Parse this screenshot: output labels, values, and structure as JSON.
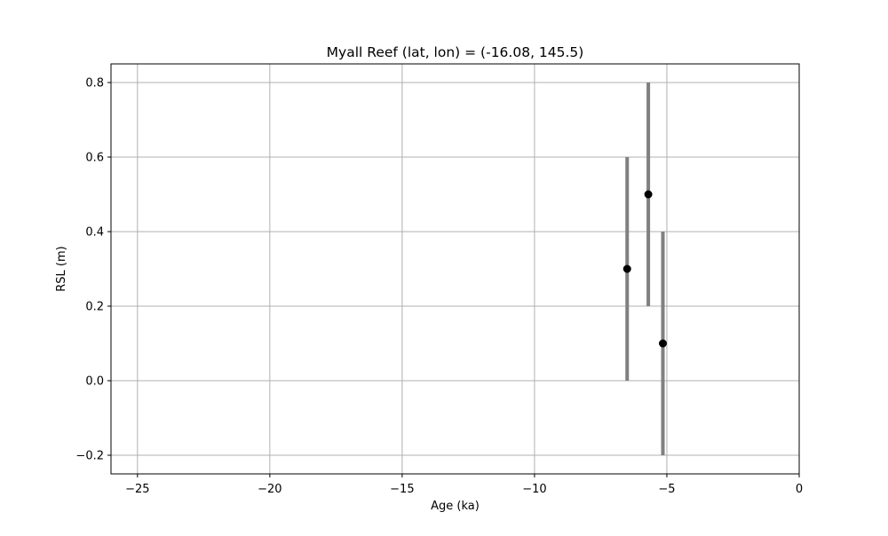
{
  "chart_data": {
    "type": "scatter",
    "title": "Myall Reef (lat, lon) = (-16.08, 145.5)",
    "xlabel": "Age (ka)",
    "ylabel": "RSL (m)",
    "xlim": [
      -26,
      0
    ],
    "ylim": [
      -0.25,
      0.85
    ],
    "xticks": [
      -25,
      -20,
      -15,
      -10,
      -5,
      0
    ],
    "xtick_labels": [
      "−25",
      "−20",
      "−15",
      "−10",
      "−5",
      "0"
    ],
    "yticks": [
      -0.2,
      0.0,
      0.2,
      0.4,
      0.6,
      0.8
    ],
    "ytick_labels": [
      "−0.2",
      "0.0",
      "0.2",
      "0.4",
      "0.6",
      "0.8"
    ],
    "grid": true,
    "series": [
      {
        "points": [
          {
            "x": -6.5,
            "y": 0.3,
            "ymin": 0.0,
            "ymax": 0.6
          },
          {
            "x": -5.7,
            "y": 0.5,
            "ymin": 0.2,
            "ymax": 0.8
          },
          {
            "x": -5.15,
            "y": 0.1,
            "ymin": -0.2,
            "ymax": 0.4
          }
        ],
        "marker_color": "#000000",
        "errorbar_color": "#808080"
      }
    ],
    "colors": {
      "grid": "#b0b0b0",
      "axes": "#000000"
    }
  }
}
